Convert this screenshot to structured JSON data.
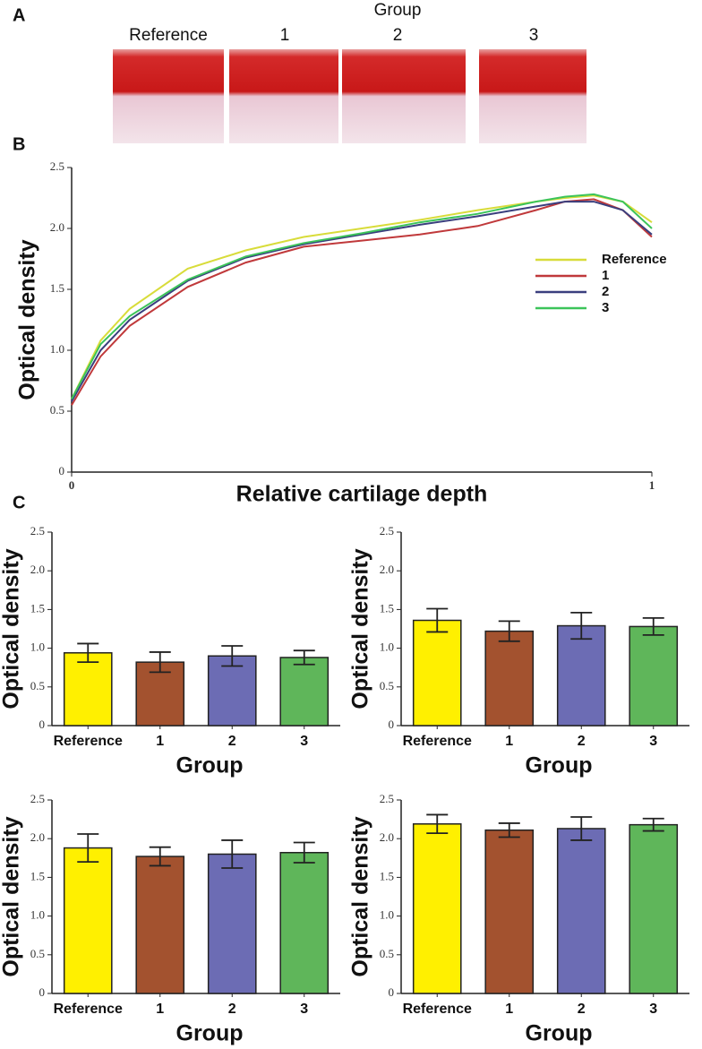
{
  "panel_labels": [
    "A",
    "B",
    "C"
  ],
  "panel_a": {
    "title": "Group",
    "labels": [
      "Reference",
      "1",
      "2",
      "3"
    ]
  },
  "chart_data": [
    {
      "type": "line",
      "xlabel": "Relative cartilage depth",
      "ylabel": "Optical density",
      "x": [
        0,
        0.05,
        0.1,
        0.2,
        0.3,
        0.4,
        0.5,
        0.6,
        0.7,
        0.8,
        0.85,
        0.9,
        0.95,
        1
      ],
      "series": [
        {
          "name": "Reference",
          "color": "#d8dc3a",
          "values": [
            0.6,
            1.08,
            1.34,
            1.67,
            1.82,
            1.93,
            2.0,
            2.07,
            2.15,
            2.22,
            2.25,
            2.27,
            2.22,
            2.05
          ]
        },
        {
          "name": "1",
          "color": "#c0393b",
          "values": [
            0.55,
            0.95,
            1.2,
            1.52,
            1.72,
            1.85,
            1.9,
            1.95,
            2.02,
            2.15,
            2.22,
            2.24,
            2.15,
            1.93
          ]
        },
        {
          "name": "2",
          "color": "#3a3f7e",
          "values": [
            0.58,
            1.0,
            1.25,
            1.57,
            1.76,
            1.87,
            1.95,
            2.03,
            2.1,
            2.18,
            2.22,
            2.22,
            2.15,
            1.95
          ]
        },
        {
          "name": "3",
          "color": "#3cc45a",
          "values": [
            0.6,
            1.05,
            1.28,
            1.58,
            1.77,
            1.88,
            1.96,
            2.05,
            2.12,
            2.22,
            2.26,
            2.28,
            2.22,
            2.0
          ]
        }
      ],
      "xlim": [
        0,
        1
      ],
      "xticks": [
        0,
        1
      ],
      "ylim": [
        0,
        2.5
      ],
      "yticks": [
        0,
        0.5,
        {
          "value": 1,
          "label": "1.0"
        },
        1.5,
        {
          "value": 2,
          "label": "2.0"
        },
        2.5
      ],
      "legend": "right"
    },
    {
      "type": "bar",
      "xlabel": "Group",
      "ylabel": "Optical density",
      "categories": [
        "Reference",
        "1",
        "2",
        "3"
      ],
      "values": [
        0.94,
        0.82,
        0.9,
        0.88
      ],
      "errors": [
        0.12,
        0.13,
        0.13,
        0.09
      ],
      "colors": [
        "#fff000",
        "#a3522f",
        "#6c6cb4",
        "#5fb65a"
      ],
      "ylim": [
        0,
        2.5
      ],
      "yticks": [
        0,
        0.5,
        {
          "value": 1,
          "label": "1.0"
        },
        1.5,
        {
          "value": 2,
          "label": "2.0"
        },
        2.5
      ]
    },
    {
      "type": "bar",
      "xlabel": "Group",
      "ylabel": "Optical density",
      "categories": [
        "Reference",
        "1",
        "2",
        "3"
      ],
      "values": [
        1.36,
        1.22,
        1.29,
        1.28
      ],
      "errors": [
        0.15,
        0.13,
        0.17,
        0.11
      ],
      "colors": [
        "#fff000",
        "#a3522f",
        "#6c6cb4",
        "#5fb65a"
      ],
      "ylim": [
        0,
        2.5
      ],
      "yticks": [
        0,
        0.5,
        {
          "value": 1,
          "label": "1.0"
        },
        1.5,
        {
          "value": 2,
          "label": "2.0"
        },
        2.5
      ]
    },
    {
      "type": "bar",
      "xlabel": "Group",
      "ylabel": "Optical density",
      "categories": [
        "Reference",
        "1",
        "2",
        "3"
      ],
      "values": [
        1.88,
        1.77,
        1.8,
        1.82
      ],
      "errors": [
        0.18,
        0.12,
        0.18,
        0.13
      ],
      "colors": [
        "#fff000",
        "#a3522f",
        "#6c6cb4",
        "#5fb65a"
      ],
      "ylim": [
        0,
        2.5
      ],
      "yticks": [
        0,
        0.5,
        {
          "value": 1,
          "label": "1.0"
        },
        1.5,
        {
          "value": 2,
          "label": "2.0"
        },
        2.5
      ]
    },
    {
      "type": "bar",
      "xlabel": "Group",
      "ylabel": "Optical density",
      "categories": [
        "Reference",
        "1",
        "2",
        "3"
      ],
      "values": [
        2.19,
        2.11,
        2.13,
        2.18
      ],
      "errors": [
        0.12,
        0.09,
        0.15,
        0.08
      ],
      "colors": [
        "#fff000",
        "#a3522f",
        "#6c6cb4",
        "#5fb65a"
      ],
      "ylim": [
        0,
        2.5
      ],
      "yticks": [
        0,
        0.5,
        {
          "value": 1,
          "label": "1.0"
        },
        1.5,
        {
          "value": 2,
          "label": "2.0"
        },
        2.5
      ]
    }
  ]
}
